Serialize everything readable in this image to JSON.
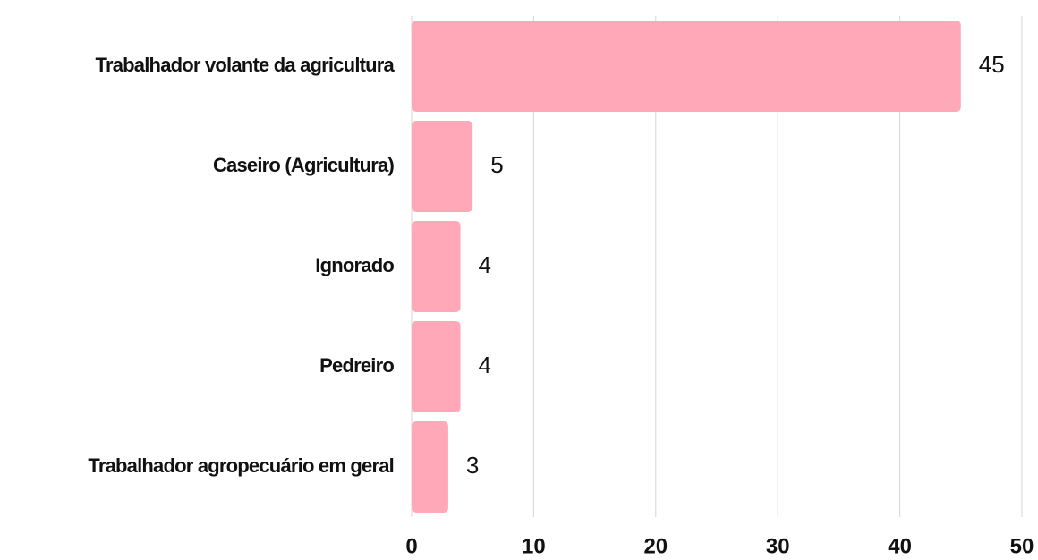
{
  "chart_data": {
    "type": "hbar",
    "categories": [
      "Trabalhador volante da agricultura",
      "Caseiro (Agricultura)",
      "Ignorado",
      "Pedreiro",
      "Trabalhador agropecuário em geral"
    ],
    "values": [
      45,
      5,
      4,
      4,
      3
    ],
    "color": "#ffa9b8",
    "xlim": [
      0,
      50
    ],
    "xticks": [
      0,
      10,
      20,
      30,
      40,
      50
    ],
    "grid": true
  }
}
